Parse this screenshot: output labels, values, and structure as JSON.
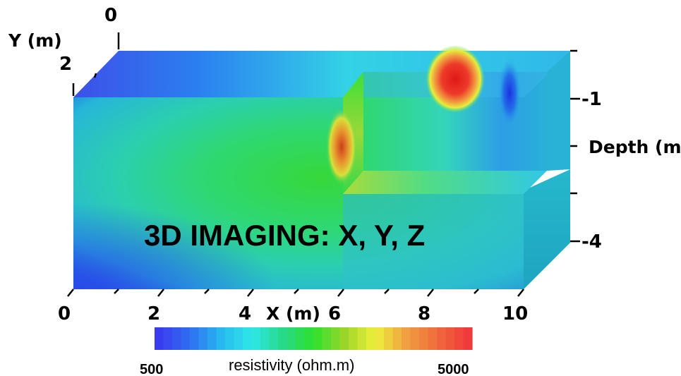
{
  "chart_data": {
    "type": "heatmap",
    "title": "3D IMAGING: X, Y, Z",
    "x_axis": {
      "label": "X (m)",
      "range": [
        0,
        10
      ],
      "tick_labels": [
        "0",
        "2",
        "4",
        "6",
        "8",
        "10"
      ]
    },
    "y_axis": {
      "label": "Y (m)",
      "range": [
        0,
        2
      ],
      "tick_labels": [
        "0",
        "2"
      ]
    },
    "z_axis": {
      "label": "Depth (m)",
      "range": [
        0,
        -4
      ],
      "tick_labels": [
        "-1",
        "-4"
      ]
    },
    "colorbar": {
      "label": "resistivity (ohm.m)",
      "min_label": "500",
      "max_label": "5000",
      "colors": [
        "#3a3cf0",
        "#2f6ff2",
        "#27b8f0",
        "#2ee8e8",
        "#27d98a",
        "#2ee02e",
        "#9ad62a",
        "#eef03c",
        "#f0a040",
        "#f06a3c",
        "#f03c3c"
      ]
    },
    "anomalies": [
      {
        "name": "",
        "x": 8.5,
        "y": 1.5,
        "depth": -0.4,
        "level": "high",
        "color": "#e02020"
      },
      {
        "name": "",
        "x": 6.0,
        "y": 0,
        "depth": -1.6,
        "level": "high",
        "color": "#d24a1c"
      },
      {
        "name": "",
        "x": 9.4,
        "y": 1.5,
        "depth": -0.8,
        "level": "low",
        "color": "#1e3ce6"
      }
    ]
  }
}
